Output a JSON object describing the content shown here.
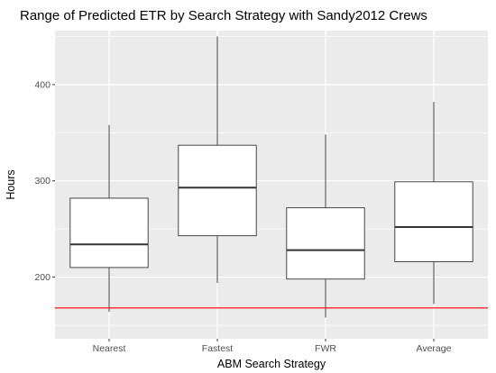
{
  "chart_data": {
    "type": "boxplot",
    "title": "Range of Predicted ETR by Search Strategy with Sandy2012 Crews",
    "xlabel": "ABM Search Strategy",
    "ylabel": "Hours",
    "categories": [
      "Nearest",
      "Fastest",
      "FWR",
      "Average"
    ],
    "boxes": [
      {
        "category": "Nearest",
        "min": 164,
        "q1": 210,
        "median": 234,
        "q3": 282,
        "max": 358
      },
      {
        "category": "Fastest",
        "min": 194,
        "q1": 243,
        "median": 293,
        "q3": 337,
        "max": 450
      },
      {
        "category": "FWR",
        "min": 158,
        "q1": 198,
        "median": 228,
        "q3": 272,
        "max": 348
      },
      {
        "category": "Average",
        "min": 172,
        "q1": 216,
        "median": 252,
        "q3": 299,
        "max": 382
      }
    ],
    "y_ticks": [
      200,
      300,
      400
    ],
    "ylim": [
      136,
      456
    ],
    "reference_line": {
      "y": 168,
      "color": "#ff0000"
    },
    "panel_color": "#ebebeb",
    "grid_color": "#ffffff",
    "box_fill": "#ffffff",
    "box_stroke": "#333333",
    "grid": true,
    "legend": "none"
  }
}
